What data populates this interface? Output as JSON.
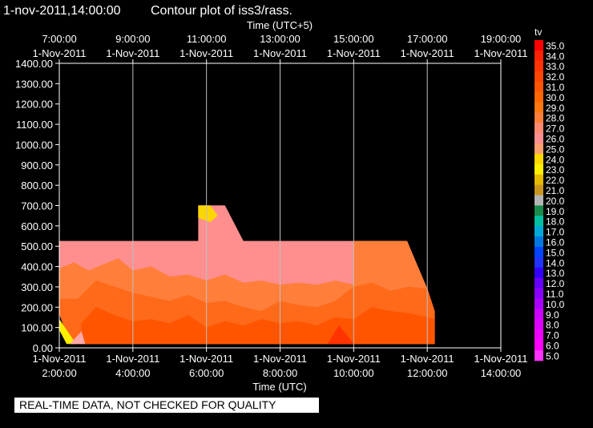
{
  "header": {
    "timestamp": "1-nov-2011,14:00:00",
    "title": "Contour plot of iss3/rass.",
    "timestamp_color": "#ffff33"
  },
  "footer": {
    "quality_note": "REAL-TIME DATA, NOT CHECKED FOR QUALITY"
  },
  "chart_data": {
    "type": "heatmap",
    "variable": "tv",
    "xlabel_bottom": "Time (UTC)",
    "xlabel_top": "Time (UTC+5)",
    "xlim_utc_hours": [
      2,
      14
    ],
    "ylim": [
      0,
      1400
    ],
    "yticks": [
      "0.00",
      "100.00",
      "200.00",
      "300.00",
      "400.00",
      "500.00",
      "600.00",
      "700.00",
      "800.00",
      "900.00",
      "1000.00",
      "1100.00",
      "1200.00",
      "1300.00",
      "1400.00"
    ],
    "xticks_bottom": [
      {
        "hour": 2,
        "date": "1-Nov-2011",
        "time": "2:00:00"
      },
      {
        "hour": 4,
        "date": "1-Nov-2011",
        "time": "4:00:00"
      },
      {
        "hour": 6,
        "date": "1-Nov-2011",
        "time": "6:00:00"
      },
      {
        "hour": 8,
        "date": "1-Nov-2011",
        "time": "8:00:00"
      },
      {
        "hour": 10,
        "date": "1-Nov-2011",
        "time": "10:00:00"
      },
      {
        "hour": 12,
        "date": "1-Nov-2011",
        "time": "12:00:00"
      },
      {
        "hour": 14,
        "date": "1-Nov-2011",
        "time": "14:00:00"
      }
    ],
    "xticks_top": [
      {
        "hour": 2,
        "time": "7:00:00",
        "date": "1-Nov-2011"
      },
      {
        "hour": 4,
        "time": "9:00:00",
        "date": "1-Nov-2011"
      },
      {
        "hour": 6,
        "time": "11:00:00",
        "date": "1-Nov-2011"
      },
      {
        "hour": 8,
        "time": "13:00:00",
        "date": "1-Nov-2011"
      },
      {
        "hour": 10,
        "time": "15:00:00",
        "date": "1-Nov-2011"
      },
      {
        "hour": 12,
        "time": "17:00:00",
        "date": "1-Nov-2011"
      },
      {
        "hour": 14,
        "time": "19:00:00",
        "date": "1-Nov-2011"
      }
    ],
    "grid": true,
    "legend_placement": "right",
    "colorbar": {
      "title": "tv",
      "levels": [
        "35.0",
        "34.0",
        "33.0",
        "32.0",
        "31.0",
        "30.0",
        "29.0",
        "28.0",
        "27.0",
        "26.0",
        "25.0",
        "24.0",
        "23.0",
        "22.0",
        "21.0",
        "20.0",
        "19.0",
        "18.0",
        "17.0",
        "16.0",
        "15.0",
        "14.0",
        "13.0",
        "12.0",
        "11.0",
        "10.0",
        "9.0",
        "8.0",
        "7.0",
        "6.0",
        "5.0"
      ],
      "colors": [
        "#ff0000",
        "#ff2200",
        "#ff3300",
        "#ff4400",
        "#ff5500",
        "#ff6600",
        "#ff7711",
        "#ff7f3a",
        "#ff8a70",
        "#ff8f8f",
        "#ffa070",
        "#ffd700",
        "#ffee00",
        "#e6b800",
        "#c8961e",
        "#b5b5b5",
        "#1a8a4a",
        "#00c0a0",
        "#00a8d8",
        "#0077e0",
        "#0044ff",
        "#2233ff",
        "#3300ff",
        "#6600ff",
        "#8800ff",
        "#aa00ff",
        "#cc00ff",
        "#dd00ff",
        "#ee00ff",
        "#ff00ff",
        "#ff33ff"
      ]
    },
    "regions": [
      {
        "tv": 27.5,
        "color": "#ff8f8f",
        "points": [
          [
            2.0,
            525
          ],
          [
            11.45,
            525
          ],
          [
            12.2,
            180
          ],
          [
            12.2,
            20
          ],
          [
            2.3,
            20
          ],
          [
            2.0,
            170
          ]
        ]
      },
      {
        "tv": 27.5,
        "color": "#ff8f8f",
        "points": [
          [
            5.78,
            525
          ],
          [
            5.78,
            700
          ],
          [
            6.5,
            700
          ],
          [
            7.0,
            525
          ]
        ]
      },
      {
        "tv": 28.5,
        "color": "#ff7f3a",
        "points": [
          [
            2.0,
            390
          ],
          [
            2.4,
            420
          ],
          [
            2.8,
            380
          ],
          [
            3.2,
            410
          ],
          [
            3.6,
            440
          ],
          [
            4.0,
            380
          ],
          [
            4.5,
            400
          ],
          [
            5.0,
            350
          ],
          [
            5.5,
            360
          ],
          [
            6.0,
            330
          ],
          [
            6.5,
            360
          ],
          [
            7.0,
            320
          ],
          [
            7.5,
            330
          ],
          [
            8.0,
            310
          ],
          [
            8.5,
            320
          ],
          [
            9.0,
            310
          ],
          [
            9.5,
            330
          ],
          [
            10.0,
            310
          ],
          [
            10.0,
            525
          ],
          [
            11.45,
            525
          ],
          [
            12.0,
            290
          ],
          [
            12.2,
            180
          ],
          [
            12.2,
            20
          ],
          [
            2.3,
            20
          ],
          [
            2.0,
            170
          ]
        ]
      },
      {
        "tv": 29.5,
        "color": "#ff6a1a",
        "points": [
          [
            2.0,
            240
          ],
          [
            2.5,
            240
          ],
          [
            3.0,
            330
          ],
          [
            3.5,
            300
          ],
          [
            4.0,
            270
          ],
          [
            4.5,
            250
          ],
          [
            5.0,
            230
          ],
          [
            5.5,
            260
          ],
          [
            6.0,
            220
          ],
          [
            6.5,
            230
          ],
          [
            7.0,
            200
          ],
          [
            7.5,
            180
          ],
          [
            8.0,
            230
          ],
          [
            8.5,
            210
          ],
          [
            9.0,
            200
          ],
          [
            9.5,
            230
          ],
          [
            10.0,
            300
          ],
          [
            10.5,
            320
          ],
          [
            11.0,
            280
          ],
          [
            11.5,
            300
          ],
          [
            12.0,
            290
          ],
          [
            12.2,
            180
          ],
          [
            12.2,
            20
          ],
          [
            2.3,
            20
          ],
          [
            2.0,
            170
          ]
        ]
      },
      {
        "tv": 30.5,
        "color": "#ff5500",
        "points": [
          [
            2.6,
            120
          ],
          [
            3.0,
            200
          ],
          [
            3.5,
            160
          ],
          [
            4.0,
            130
          ],
          [
            4.5,
            140
          ],
          [
            5.0,
            120
          ],
          [
            5.5,
            160
          ],
          [
            6.0,
            100
          ],
          [
            6.5,
            130
          ],
          [
            7.0,
            110
          ],
          [
            7.5,
            140
          ],
          [
            8.0,
            120
          ],
          [
            8.5,
            130
          ],
          [
            9.0,
            110
          ],
          [
            9.5,
            150
          ],
          [
            10.0,
            140
          ],
          [
            10.5,
            200
          ],
          [
            11.0,
            180
          ],
          [
            11.5,
            170
          ],
          [
            12.0,
            150
          ],
          [
            12.2,
            140
          ],
          [
            12.2,
            20
          ],
          [
            2.6,
            20
          ]
        ]
      },
      {
        "tv": 31.5,
        "color": "#ff3300",
        "points": [
          [
            9.3,
            20
          ],
          [
            9.6,
            110
          ],
          [
            10.0,
            20
          ]
        ]
      },
      {
        "tv": 24.5,
        "color": "#ffd700",
        "points": [
          [
            5.78,
            640
          ],
          [
            5.78,
            700
          ],
          [
            6.1,
            700
          ],
          [
            6.3,
            650
          ],
          [
            6.1,
            620
          ]
        ]
      },
      {
        "tv": 24.0,
        "color": "#ffee00",
        "points": [
          [
            2.0,
            140
          ],
          [
            2.45,
            20
          ],
          [
            2.2,
            20
          ],
          [
            2.0,
            90
          ]
        ]
      },
      {
        "tv": 27.0,
        "color": "#ffaaaa",
        "points": [
          [
            2.3,
            20
          ],
          [
            2.6,
            80
          ],
          [
            2.7,
            20
          ]
        ]
      }
    ]
  }
}
